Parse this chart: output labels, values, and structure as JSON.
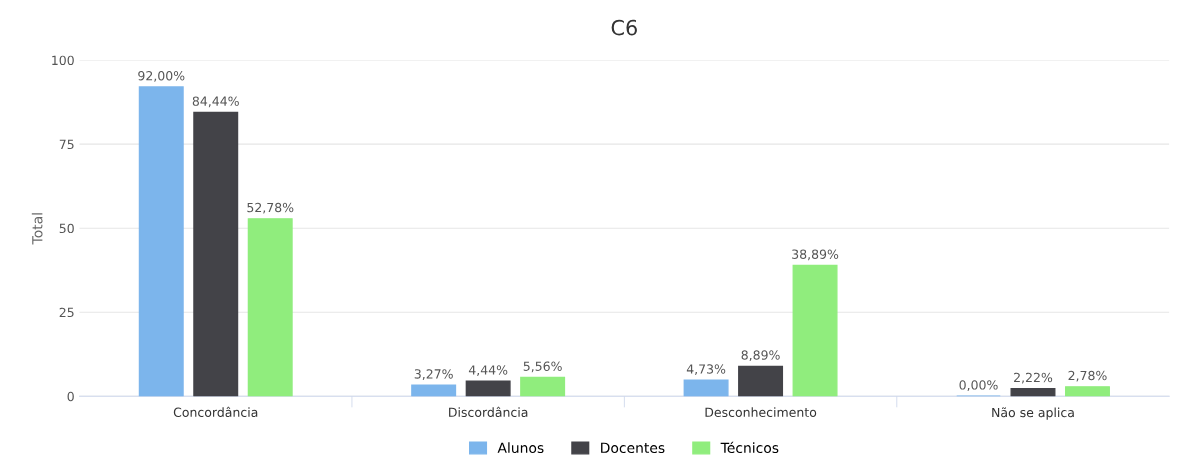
{
  "chart_data": {
    "type": "bar",
    "title": "C6",
    "ylabel": "Total",
    "categories": [
      "Concordância",
      "Discordância",
      "Desconhecimento",
      "Não se aplica"
    ],
    "series": [
      {
        "name": "Alunos",
        "color": "#7cb5ec",
        "values": [
          92.0,
          3.27,
          4.73,
          0.0
        ],
        "value_labels": [
          "92,00%",
          "3,27%",
          "4,73%",
          "0,00%"
        ]
      },
      {
        "name": "Docentes",
        "color": "#434348",
        "values": [
          84.44,
          4.44,
          8.89,
          2.22
        ],
        "value_labels": [
          "84,44%",
          "4,44%",
          "8,89%",
          "2,22%"
        ]
      },
      {
        "name": "Técnicos",
        "color": "#90ed7d",
        "values": [
          52.78,
          5.56,
          38.89,
          2.78
        ],
        "value_labels": [
          "52,78%",
          "5,56%",
          "38,89%",
          "2,78%"
        ]
      }
    ],
    "ylim": [
      0,
      100
    ],
    "yticks": [
      0,
      25,
      50,
      75,
      100
    ],
    "grid": "y",
    "legend": "bottom"
  }
}
